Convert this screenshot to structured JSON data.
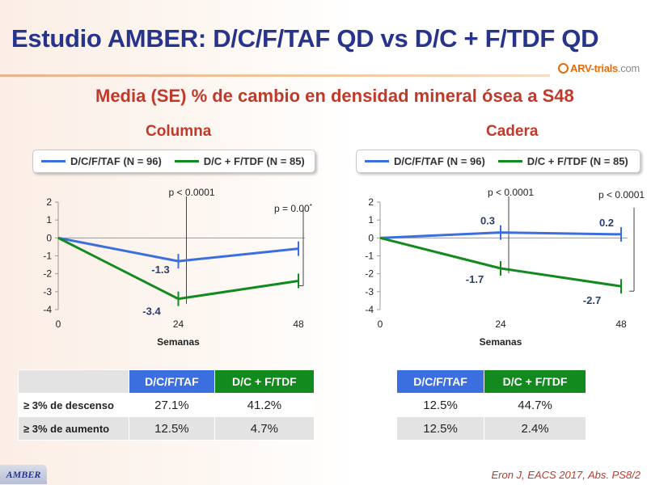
{
  "header": {
    "title": "Estudio AMBER: D/C/F/TAF QD vs D/C + F/TDF QD",
    "logo_text_1": "ARV-trials",
    "logo_text_2": ".com",
    "subtitle": "Media (SE) % de cambio en densidad mineral ósea a S48"
  },
  "colors": {
    "blue": "#3b6fe0",
    "green": "#138a1e",
    "red": "#c0392b",
    "navy": "#27348b"
  },
  "legend": {
    "blue_label": "D/C/F/TAF (N = 96)",
    "green_label": "D/C + F/TDF (N = 85)"
  },
  "chart_data": [
    {
      "type": "line",
      "title": "Columna",
      "xlabel": "Semanas",
      "ylabel": "",
      "x": [
        0,
        24,
        48
      ],
      "ylim": [
        -4,
        2
      ],
      "yticks": [
        "2",
        "1",
        "0",
        "-1",
        "-2",
        "-3",
        "-4"
      ],
      "xticks": [
        "0",
        "24",
        "48"
      ],
      "series": [
        {
          "name": "D/C/F/TAF (N = 96)",
          "values": [
            0,
            -1.3,
            -0.6
          ],
          "labels": [
            "",
            "-1.3",
            ""
          ]
        },
        {
          "name": "D/C + F/TDF (N = 85)",
          "values": [
            0,
            -3.4,
            -2.4
          ],
          "labels": [
            "",
            "-3.4",
            ""
          ]
        }
      ],
      "pvalues": [
        "p < 0.0001",
        "p = 0.00"
      ],
      "pvalue_superscript": "*"
    },
    {
      "type": "line",
      "title": "Cadera",
      "xlabel": "Semanas",
      "ylabel": "",
      "x": [
        0,
        24,
        48
      ],
      "ylim": [
        -4,
        2
      ],
      "yticks": [
        "2",
        "1",
        "0",
        "-1",
        "-2",
        "-3",
        "-4"
      ],
      "xticks": [
        "0",
        "24",
        "48"
      ],
      "series": [
        {
          "name": "D/C/F/TAF (N = 96)",
          "values": [
            0,
            0.3,
            0.2
          ],
          "labels": [
            "",
            "0.3",
            "0.2"
          ]
        },
        {
          "name": "D/C + F/TDF (N = 85)",
          "values": [
            0,
            -1.7,
            -2.7
          ],
          "labels": [
            "",
            "-1.7",
            "-2.7"
          ]
        }
      ],
      "pvalues": [
        "p < 0.0001",
        "p < 0.0001"
      ],
      "pvalue_superscript": ""
    }
  ],
  "tables": {
    "columna": {
      "headers": [
        "D/C/F/TAF",
        "D/C + F/TDF"
      ],
      "rows": [
        {
          "label": "≥ 3% de descenso",
          "values": [
            "27.1%",
            "41.2%"
          ]
        },
        {
          "label": "≥ 3% de aumento",
          "values": [
            "12.5%",
            "4.7%"
          ]
        }
      ]
    },
    "cadera": {
      "headers": [
        "D/C/F/TAF",
        "D/C + F/TDF"
      ],
      "rows": [
        {
          "values": [
            "12.5%",
            "44.7%"
          ]
        },
        {
          "values": [
            "12.5%",
            "2.4%"
          ]
        }
      ]
    }
  },
  "footer": {
    "badge": "AMBER",
    "citation": "Eron J, EACS 2017, Abs. PS8/2"
  }
}
